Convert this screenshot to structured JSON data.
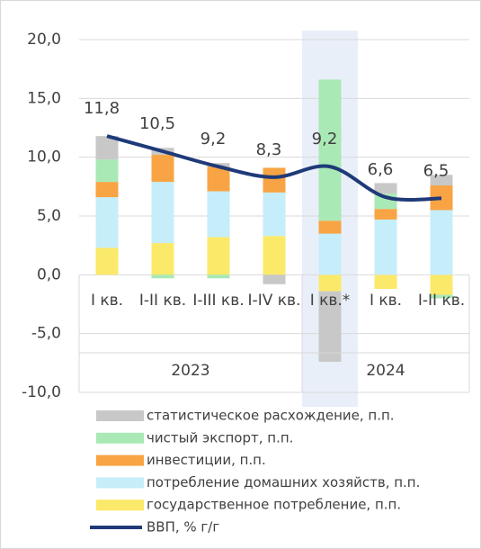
{
  "chart_data": {
    "type": "bar",
    "categories": [
      "I кв.",
      "I-II кв.",
      "I-III кв.",
      "I-IV кв.",
      "I кв.*",
      "I кв.",
      "I-II кв."
    ],
    "groups": [
      "2023",
      "2024"
    ],
    "stacked": true,
    "series": [
      {
        "name": "государственное потребление, п.п.",
        "color": "#fbe96a",
        "values": [
          2.3,
          2.7,
          3.2,
          3.3,
          -1.4,
          -1.2,
          -1.7
        ]
      },
      {
        "name": "потребление домашних хозяйств, п.п.",
        "color": "#c6eefa",
        "values": [
          4.3,
          5.2,
          3.9,
          3.7,
          3.5,
          4.7,
          5.5
        ]
      },
      {
        "name": "инвестиции, п.п.",
        "color": "#f8a444",
        "values": [
          1.3,
          2.3,
          2.1,
          2.1,
          1.1,
          0.9,
          2.1
        ]
      },
      {
        "name": "чистый экспорт, п.п.",
        "color": "#a9e9b5",
        "values": [
          1.9,
          -0.3,
          -0.3,
          0,
          12.0,
          1.3,
          -0.3
        ]
      },
      {
        "name": "статистическое расхождение, п.п.",
        "color": "#c8c8c8",
        "values": [
          2.0,
          0.6,
          0.3,
          -0.8,
          -6.0,
          0.9,
          0.9
        ]
      },
      {
        "name": "ВВП, % г/г",
        "type": "line",
        "color": "#1f3a78",
        "values": [
          11.8,
          10.5,
          9.2,
          8.3,
          9.2,
          6.6,
          6.5
        ],
        "value_labels": [
          "11,8",
          "10,5",
          "9,2",
          "8,3",
          "9,2",
          "6,6",
          "6,5"
        ]
      }
    ],
    "ylim": [
      -10,
      20
    ],
    "yticks": [
      {
        "value": -10,
        "label": "-10,0"
      },
      {
        "value": -5,
        "label": "-5,0"
      },
      {
        "value": 0,
        "label": "0,0"
      },
      {
        "value": 5,
        "label": "5,0"
      },
      {
        "value": 10,
        "label": "10,0"
      },
      {
        "value": 15,
        "label": "15,0"
      },
      {
        "value": 20,
        "label": "20,0"
      }
    ],
    "grid": true,
    "legend": "bottom"
  }
}
